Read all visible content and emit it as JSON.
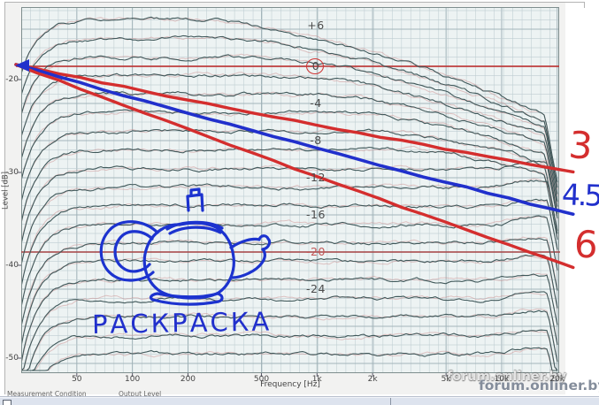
{
  "window": {
    "footer": {
      "label_measurement": "Measurement Condition",
      "label_output": "Output Level"
    }
  },
  "watermark": {
    "text": "forum.onliner.by"
  },
  "doodles": {
    "caption": "РАСКРАСКА",
    "teapot": "hand-drawn blue teapot",
    "slope_labels": [
      {
        "text": "3",
        "color": "#d42e2e"
      },
      {
        "text": "4.5",
        "color": "#2130cc"
      },
      {
        "text": "6",
        "color": "#d42e2e"
      }
    ]
  },
  "chart_data": {
    "type": "line",
    "title": "",
    "xlabel": "Frequency [Hz]",
    "ylabel": "Level [dB]",
    "x_scale": "log",
    "x_range_hz": [
      25,
      20500
    ],
    "grid": "on",
    "x_ticks": [
      {
        "label": "50",
        "hz": 50
      },
      {
        "label": "100",
        "hz": 100
      },
      {
        "label": "200",
        "hz": 200
      },
      {
        "label": "500",
        "hz": 500
      },
      {
        "label": "1k",
        "hz": 1000
      },
      {
        "label": "2k",
        "hz": 2000
      },
      {
        "label": "5k",
        "hz": 5000
      },
      {
        "label": "10k",
        "hz": 10000
      },
      {
        "label": "20k",
        "hz": 20000
      }
    ],
    "y_ticks_outer": [
      {
        "label": "-20",
        "db": -20
      },
      {
        "label": "-30",
        "db": -30
      },
      {
        "label": "-40",
        "db": -40
      },
      {
        "label": "-50",
        "db": -50
      }
    ],
    "y_labels_inner": [
      {
        "label": "+6",
        "db": 6
      },
      {
        "label": "0",
        "db": 0,
        "circled": true
      },
      {
        "label": "-4",
        "db": -4
      },
      {
        "label": "-8",
        "db": -8
      },
      {
        "label": "-12",
        "db": -12
      },
      {
        "label": "-16",
        "db": -16
      },
      {
        "label": "-20",
        "db": -20,
        "red": true
      },
      {
        "label": "-24",
        "db": -24
      }
    ],
    "reference_lines_db": [
      0,
      -20
    ],
    "series_flat_levels_db": [
      5,
      3,
      1,
      -1,
      -3,
      -5,
      -7,
      -9,
      -11,
      -13,
      -15,
      -17,
      -19,
      -21,
      -23,
      -25,
      -27,
      -29,
      -31
    ],
    "series_description": "family of measured frequency-response curves stepped 2 dB apart, rolling off at low and very high frequencies",
    "annotation_lines": [
      {
        "label": "3",
        "color": "#d42e2e",
        "start": {
          "hz": 25,
          "db": 0
        },
        "end": {
          "hz": 20000,
          "db": -11
        }
      },
      {
        "label": "4.5",
        "color": "#2130cc",
        "start": {
          "hz": 25,
          "db": 0
        },
        "end": {
          "hz": 20000,
          "db": -15.5
        }
      },
      {
        "label": "6",
        "color": "#d42e2e",
        "start": {
          "hz": 25,
          "db": 0
        },
        "end": {
          "hz": 20000,
          "db": -21
        }
      }
    ],
    "colors": {
      "curve": "#40585a",
      "curve_alt": "#c98484",
      "reference": "#bf2f2f",
      "grid_minor": "#bccbd0",
      "grid_major": "#9aadb3",
      "plot_bg": "#edf3f3",
      "hand_red": "#d42e2e",
      "hand_blue": "#2130cc"
    }
  }
}
